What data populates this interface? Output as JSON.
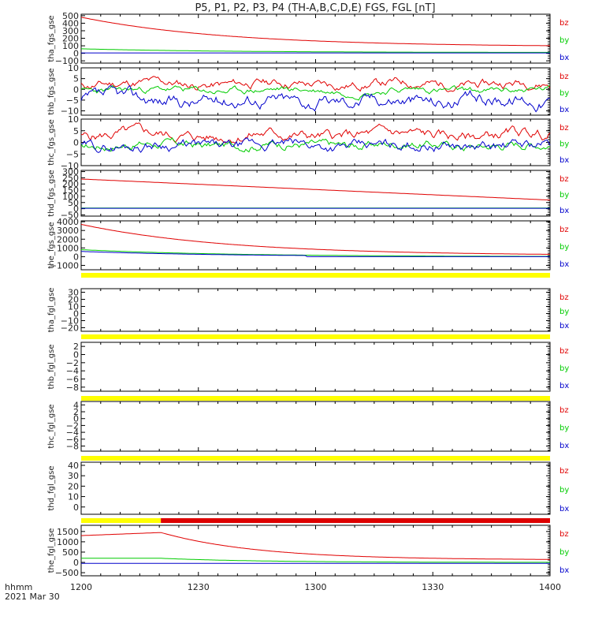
{
  "figure": {
    "title": "P5, P1, P2, P3, P4 (TH-A,B,C,D,E) FGS, FGL [nT]",
    "time_axis_label": "hhmm",
    "date_label": "2021 Mar 30"
  },
  "chart_data": {
    "type": "line",
    "x_axis": {
      "range": [
        "12:00",
        "14:00"
      ],
      "tick_labels": [
        "1200",
        "1230",
        "1300",
        "1330",
        "1400"
      ]
    },
    "legend_colors": {
      "bz": "#e00000",
      "by": "#00cc00",
      "bx": "#0000cc"
    },
    "panels": [
      {
        "ylabel": "tha_fgs_gse",
        "ylim": [
          -130,
          520
        ],
        "yticks": [
          500,
          400,
          300,
          200,
          100,
          0,
          -100
        ],
        "tick_labels": [
          "500",
          "400",
          "300",
          "200",
          "100",
          "0",
          "−100"
        ],
        "series": [
          {
            "name": "bz",
            "color": "#e00000",
            "kind": "decay",
            "start": 480,
            "end": 85
          },
          {
            "name": "by",
            "color": "#00cc00",
            "kind": "decay",
            "start": 60,
            "end": 10
          },
          {
            "name": "bx",
            "color": "#0000cc",
            "kind": "flat",
            "value": 5
          }
        ]
      },
      {
        "ylabel": "thb_fgs_gse",
        "ylim": [
          -12,
          10
        ],
        "yticks": [
          10,
          5,
          0,
          -5,
          -10
        ],
        "tick_labels": [
          "10",
          "5",
          "0",
          "−5",
          "−10"
        ],
        "series": [
          {
            "name": "bz",
            "color": "#e00000",
            "kind": "noisy",
            "base": 2.5,
            "amp": 2.0,
            "seed": 11
          },
          {
            "name": "by",
            "color": "#00cc00",
            "kind": "noisy",
            "base": -0.5,
            "amp": 1.5,
            "seed": 23
          },
          {
            "name": "bx",
            "color": "#0000cc",
            "kind": "noisy",
            "base": -5,
            "amp": 3.0,
            "seed": 37
          }
        ]
      },
      {
        "ylabel": "thc_fgs_gse",
        "ylim": [
          -10,
          10
        ],
        "yticks": [
          10,
          5,
          0,
          -5,
          -10
        ],
        "tick_labels": [
          "10",
          "5",
          "0",
          "−5",
          "−10"
        ],
        "series": [
          {
            "name": "bz",
            "color": "#e00000",
            "kind": "noisy",
            "base": 3,
            "amp": 2.2,
            "seed": 5
          },
          {
            "name": "by",
            "color": "#00cc00",
            "kind": "noisy",
            "base": -1,
            "amp": 1.8,
            "seed": 17
          },
          {
            "name": "bx",
            "color": "#0000cc",
            "kind": "noisy",
            "base": -1.5,
            "amp": 2.2,
            "seed": 29
          }
        ]
      },
      {
        "ylabel": "thd_fgs_gse",
        "ylim": [
          -60,
          310
        ],
        "yticks": [
          300,
          250,
          200,
          150,
          100,
          50,
          0,
          -50
        ],
        "tick_labels": [
          "300",
          "250",
          "200",
          "150",
          "100",
          "50",
          "0",
          "−50"
        ],
        "series": [
          {
            "name": "bz",
            "color": "#e00000",
            "kind": "linear",
            "start": 240,
            "end": 70
          },
          {
            "name": "by",
            "color": "#00cc00",
            "kind": "flat",
            "value": 5
          },
          {
            "name": "bx",
            "color": "#0000cc",
            "kind": "flat",
            "value": 3
          }
        ]
      },
      {
        "ylabel": "the_fgs_gse",
        "ylim": [
          -1500,
          4100
        ],
        "yticks": [
          4000,
          3000,
          2000,
          1000,
          0,
          -1000
        ],
        "tick_labels": [
          "4000",
          "3000",
          "2000",
          "1000",
          "0",
          "−1000"
        ],
        "series": [
          {
            "name": "bz",
            "color": "#e00000",
            "kind": "decay",
            "start": 3700,
            "end": 120
          },
          {
            "name": "by",
            "color": "#00cc00",
            "kind": "decay",
            "start": 800,
            "end": 0
          },
          {
            "name": "bx",
            "color": "#0000cc",
            "kind": "decay",
            "start": 600,
            "end": 0,
            "cut": 0.48
          }
        ]
      },
      {
        "ylabel": "tha_fgl_gse",
        "ylim": [
          -25,
          35
        ],
        "yticks": [
          30,
          20,
          10,
          0,
          -10,
          -20
        ],
        "tick_labels": [
          "30",
          "20",
          "10",
          "0",
          "−10",
          "−20"
        ],
        "series": []
      },
      {
        "ylabel": "thb_fgl_gse",
        "ylim": [
          -9,
          3
        ],
        "yticks": [
          2,
          0,
          -2,
          -4,
          -6,
          -8
        ],
        "tick_labels": [
          "2",
          "0",
          "−2",
          "−4",
          "−6",
          "−8"
        ],
        "series": []
      },
      {
        "ylabel": "thc_fgl_gse",
        "ylim": [
          -9.5,
          5
        ],
        "yticks": [
          4,
          2,
          0,
          -2,
          -4,
          -6,
          -8
        ],
        "tick_labels": [
          "4",
          "2",
          "0",
          "−2",
          "−4",
          "−6",
          "−8"
        ],
        "series": []
      },
      {
        "ylabel": "thd_fgl_gse",
        "ylim": [
          -7,
          43
        ],
        "yticks": [
          40,
          30,
          20,
          10,
          0
        ],
        "tick_labels": [
          "40",
          "30",
          "20",
          "10",
          "0"
        ],
        "series": []
      },
      {
        "ylabel": "the_fgl_gse",
        "ylim": [
          -650,
          1800
        ],
        "yticks": [
          1500,
          1000,
          500,
          0,
          -500
        ],
        "tick_labels": [
          "1500",
          "1000",
          "500",
          "0",
          "−500"
        ],
        "series": [
          {
            "name": "bz",
            "color": "#e00000",
            "kind": "plateau",
            "start": 1300,
            "peak": 1450,
            "split": 0.17,
            "end": 120
          },
          {
            "name": "by",
            "color": "#00cc00",
            "kind": "plateau",
            "start": 200,
            "peak": 200,
            "split": 0.17,
            "end": 0
          },
          {
            "name": "bx",
            "color": "#0000cc",
            "kind": "flat",
            "value": -50
          }
        ]
      }
    ],
    "mode_bars": [
      {
        "segments": [
          {
            "to": 1.0,
            "color": "#ffff00"
          }
        ]
      },
      {
        "segments": [
          {
            "to": 1.0,
            "color": "#ffff00"
          }
        ]
      },
      {
        "segments": [
          {
            "to": 1.0,
            "color": "#ffff00"
          }
        ]
      },
      {
        "segments": [
          {
            "to": 1.0,
            "color": "#ffff00"
          }
        ]
      },
      {
        "segments": [
          {
            "to": 0.17,
            "color": "#ffff00"
          },
          {
            "to": 1.0,
            "color": "#dd0000"
          }
        ]
      }
    ]
  }
}
